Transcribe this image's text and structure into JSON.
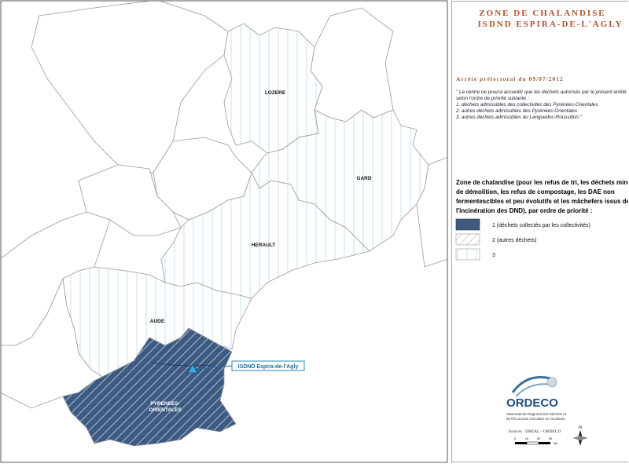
{
  "map": {
    "departments": [
      "LOZERE",
      "GARD",
      "HERAULT",
      "AUDE"
    ],
    "po_label": [
      "PYRENEES-",
      "ORIENTALES"
    ],
    "site_label": "ISDND Espira-de-l'Agly"
  },
  "panel": {
    "title": [
      "ZONE DE CHALANDISE",
      "ISDND ESPIRA-DE-L'AGLY"
    ],
    "decree": "Arrêté préfectoral du 09/07/2012",
    "quote": [
      "\" Le centre ne pourra accueillir que les déchets autorisés par le présent arrêté",
      "selon l'ordre de priorité suivante :",
      "1. déchets admissibles des collectivités des Pyrénées-Orientales",
      "2. autres déchets admissibles des Pyrénées-Orientales",
      "3. autres déchets admissibles du Languedoc-Roussillon.\""
    ],
    "legend_heading": [
      "Zone de chalandise (pour les refus de tri, les déchets minéraux",
      "de démolition, les refus de compostage, les DAE non",
      "fermentescibles et peu évolutifs et les mâchefers issus de",
      "l'incinération des DND), par ordre de priorité :"
    ],
    "legend": [
      "1 (déchets collectés par les collectivités)",
      "2 (autres déchets)",
      "3"
    ],
    "logo": {
      "name": "ORDECO",
      "subtitle": [
        "Observatoire Régional des Déchets et",
        "de l'Économie Circulaire en Occitanie"
      ]
    },
    "source": "Sources : DREAL - ORDECO",
    "scale": [
      "0",
      "10",
      "20",
      "30",
      "km"
    ],
    "north": "N"
  }
}
